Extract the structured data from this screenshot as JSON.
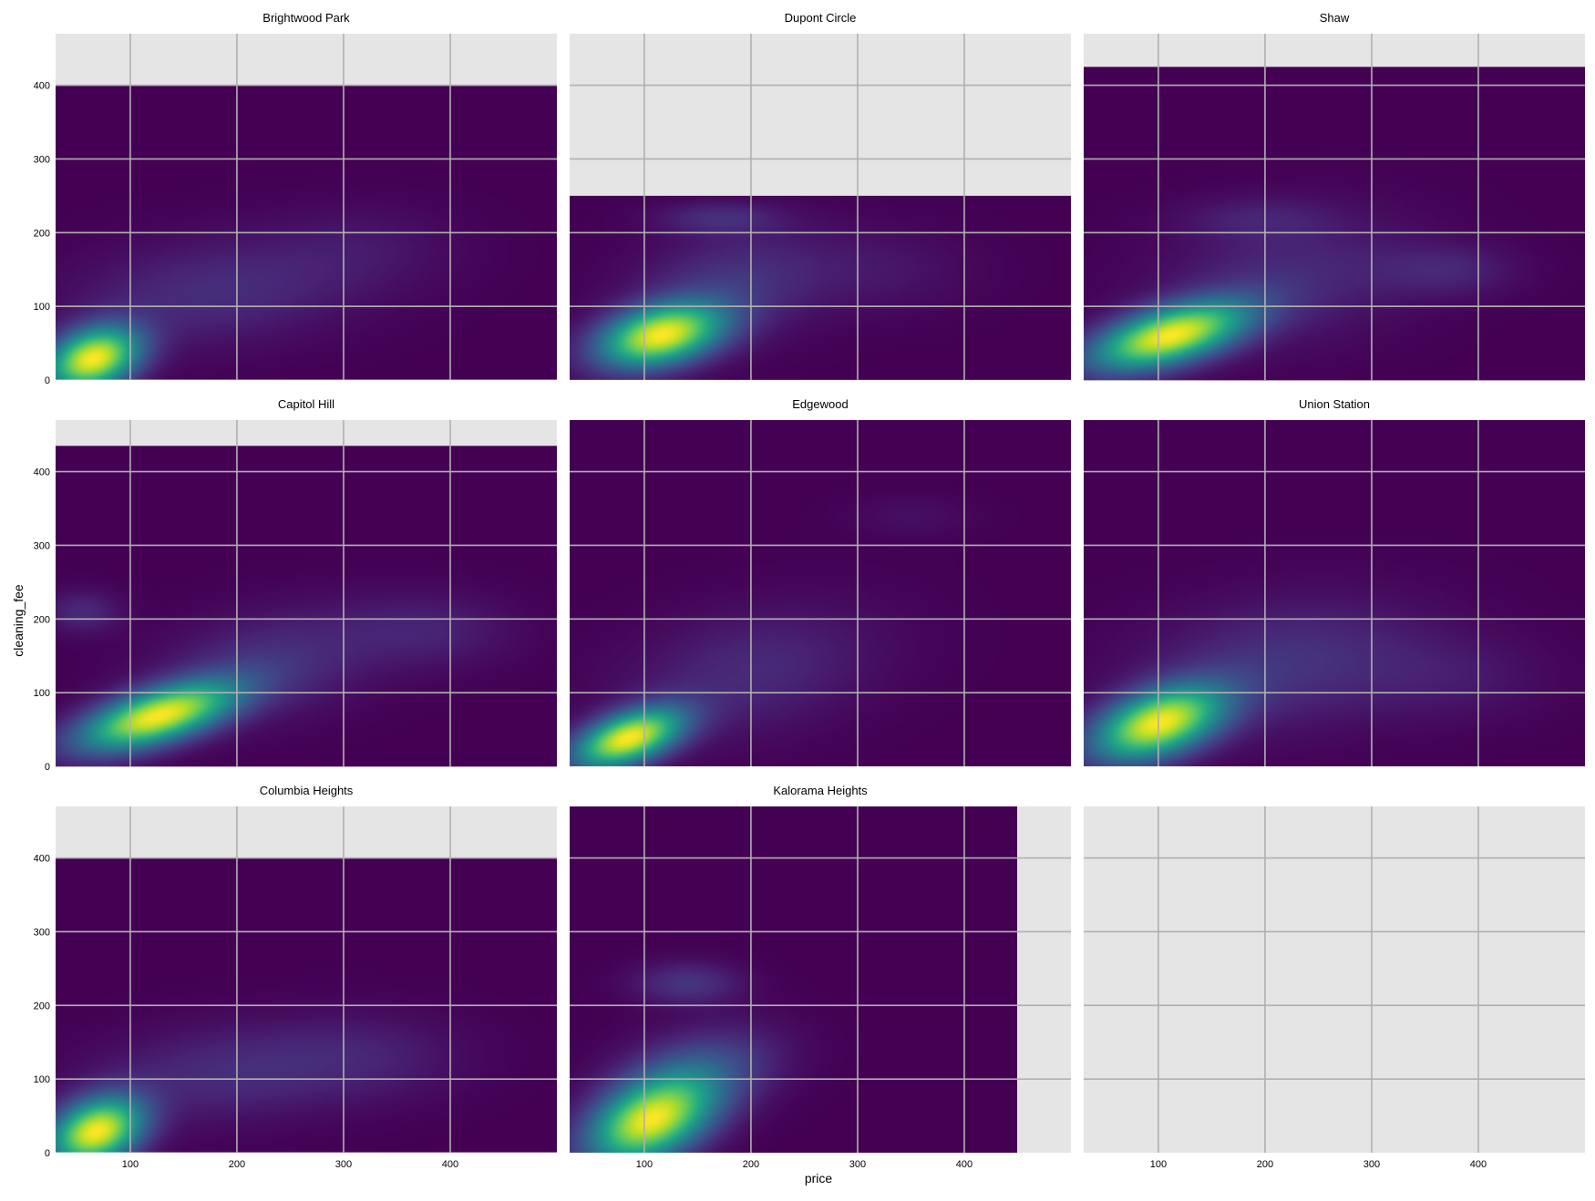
{
  "figure": {
    "xlabel": "price",
    "ylabel": "cleaning_fee"
  },
  "colormap": [
    "#440154",
    "#482475",
    "#414487",
    "#355f8d",
    "#2a788e",
    "#21918c",
    "#22a884",
    "#44bf70",
    "#7ad151",
    "#bddf26",
    "#fde725"
  ],
  "colors": {
    "panel_bg": "#e5e5e5",
    "grid": "#b0b0b0"
  },
  "chart_data": {
    "type": "heatmap",
    "description_kind": "faceted 2D density",
    "shared_xlim": [
      30,
      500
    ],
    "shared_ylim": [
      0,
      470
    ],
    "xticks": [
      100,
      200,
      300,
      400
    ],
    "yticks": [
      0,
      100,
      200,
      300,
      400
    ],
    "grid": true,
    "panels": [
      {
        "title": "Brightwood Park",
        "extent": {
          "x": [
            30,
            500
          ],
          "y": [
            0,
            400
          ]
        },
        "blobs": [
          {
            "x": 65,
            "y": 28,
            "sx": 30,
            "sy": 30,
            "rho": 0.3,
            "w": 1.0
          },
          {
            "x": 180,
            "y": 120,
            "sx": 90,
            "sy": 50,
            "rho": 0.2,
            "w": 0.13
          },
          {
            "x": 320,
            "y": 180,
            "sx": 60,
            "sy": 40,
            "rho": 0,
            "w": 0.05
          }
        ]
      },
      {
        "title": "Dupont Circle",
        "extent": {
          "x": [
            30,
            500
          ],
          "y": [
            0,
            250
          ]
        },
        "blobs": [
          {
            "x": 115,
            "y": 60,
            "sx": 40,
            "sy": 30,
            "rho": 0.35,
            "w": 1.0
          },
          {
            "x": 180,
            "y": 130,
            "sx": 60,
            "sy": 50,
            "rho": 0.2,
            "w": 0.15
          },
          {
            "x": 170,
            "y": 220,
            "sx": 40,
            "sy": 15,
            "rho": 0,
            "w": 0.12
          },
          {
            "x": 320,
            "y": 150,
            "sx": 60,
            "sy": 40,
            "rho": 0,
            "w": 0.06
          }
        ]
      },
      {
        "title": "Shaw",
        "extent": {
          "x": [
            30,
            500
          ],
          "y": [
            0,
            425
          ]
        },
        "blobs": [
          {
            "x": 110,
            "y": 60,
            "sx": 50,
            "sy": 32,
            "rho": 0.55,
            "w": 1.0
          },
          {
            "x": 220,
            "y": 140,
            "sx": 80,
            "sy": 60,
            "rho": 0.2,
            "w": 0.12
          },
          {
            "x": 370,
            "y": 150,
            "sx": 45,
            "sy": 25,
            "rho": 0,
            "w": 0.1
          },
          {
            "x": 190,
            "y": 220,
            "sx": 50,
            "sy": 20,
            "rho": 0,
            "w": 0.07
          }
        ]
      },
      {
        "title": "Capitol Hill",
        "extent": {
          "x": [
            30,
            500
          ],
          "y": [
            0,
            435
          ]
        },
        "blobs": [
          {
            "x": 125,
            "y": 68,
            "sx": 50,
            "sy": 32,
            "rho": 0.6,
            "w": 1.0
          },
          {
            "x": 230,
            "y": 140,
            "sx": 70,
            "sy": 50,
            "rho": 0.3,
            "w": 0.14
          },
          {
            "x": 380,
            "y": 185,
            "sx": 55,
            "sy": 35,
            "rho": 0,
            "w": 0.09
          },
          {
            "x": 55,
            "y": 210,
            "sx": 25,
            "sy": 20,
            "rho": 0,
            "w": 0.12
          }
        ]
      },
      {
        "title": "Edgewood",
        "extent": {
          "x": [
            30,
            500
          ],
          "y": [
            0,
            470
          ]
        },
        "blobs": [
          {
            "x": 85,
            "y": 38,
            "sx": 35,
            "sy": 28,
            "rho": 0.5,
            "w": 1.0
          },
          {
            "x": 200,
            "y": 130,
            "sx": 80,
            "sy": 60,
            "rho": 0.3,
            "w": 0.12
          },
          {
            "x": 350,
            "y": 340,
            "sx": 40,
            "sy": 20,
            "rho": 0,
            "w": 0.04
          }
        ]
      },
      {
        "title": "Union Station",
        "extent": {
          "x": [
            30,
            500
          ],
          "y": [
            0,
            470
          ]
        },
        "blobs": [
          {
            "x": 100,
            "y": 58,
            "sx": 42,
            "sy": 35,
            "rho": 0.45,
            "w": 1.0
          },
          {
            "x": 220,
            "y": 140,
            "sx": 90,
            "sy": 60,
            "rho": 0.2,
            "w": 0.15
          },
          {
            "x": 380,
            "y": 120,
            "sx": 60,
            "sy": 40,
            "rho": 0,
            "w": 0.06
          }
        ]
      },
      {
        "title": "Columbia Heights",
        "extent": {
          "x": [
            30,
            500
          ],
          "y": [
            0,
            400
          ]
        },
        "blobs": [
          {
            "x": 68,
            "y": 28,
            "sx": 30,
            "sy": 32,
            "rho": 0.3,
            "w": 1.0
          },
          {
            "x": 200,
            "y": 110,
            "sx": 90,
            "sy": 45,
            "rho": 0.2,
            "w": 0.13
          },
          {
            "x": 330,
            "y": 130,
            "sx": 60,
            "sy": 40,
            "rho": 0,
            "w": 0.06
          }
        ]
      },
      {
        "title": "Kalorama Heights",
        "extent": {
          "x": [
            30,
            450
          ],
          "y": [
            0,
            470
          ]
        },
        "blobs": [
          {
            "x": 105,
            "y": 42,
            "sx": 40,
            "sy": 40,
            "rho": 0.4,
            "w": 1.0
          },
          {
            "x": 150,
            "y": 110,
            "sx": 50,
            "sy": 40,
            "rho": 0.3,
            "w": 0.25
          },
          {
            "x": 140,
            "y": 230,
            "sx": 35,
            "sy": 20,
            "rho": 0,
            "w": 0.16
          }
        ]
      },
      {
        "title": "",
        "extent": null,
        "blobs": []
      }
    ]
  }
}
